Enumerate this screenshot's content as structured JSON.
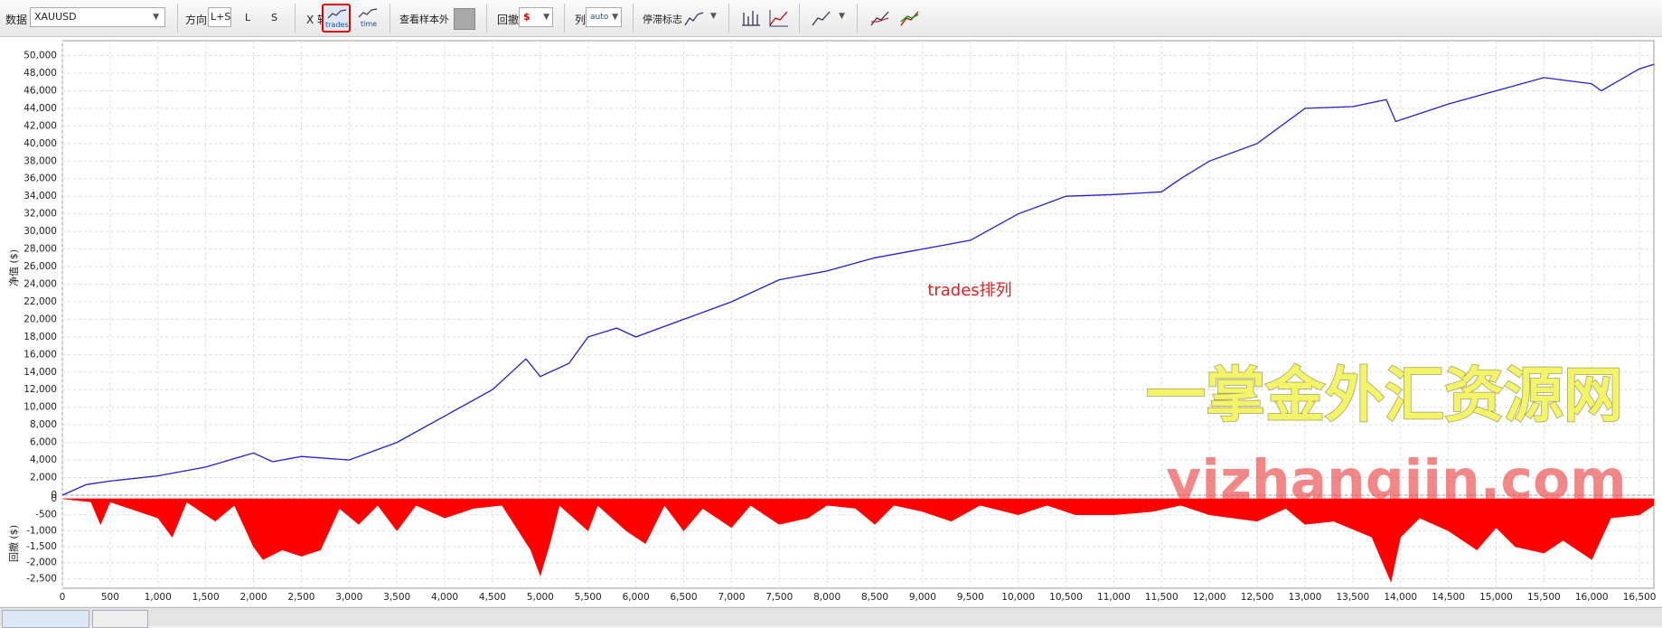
{
  "toolbar": {
    "data_label": "数据",
    "data_value": "XAUUSD",
    "direction_label": "方向",
    "direction_options": [
      "L+S",
      "L",
      "S"
    ],
    "x_axis_label": "X 轴",
    "x_axis_options": [
      "trades",
      "time"
    ],
    "out_of_sample": "查看样本外",
    "drawdown_label": "回撤",
    "drawdown_unit": "$",
    "columns_label": "列",
    "columns_value": "auto",
    "stagnation_label": "停滞标志"
  },
  "chart_data": [
    {
      "type": "line",
      "y_label": "净值 ($)",
      "annotation": "trades排列",
      "watermark_texts": [
        "一掌金外汇资源网",
        "yizhangjin.com"
      ],
      "color": "#2020d0",
      "grid": true,
      "xlim": [
        0,
        16650
      ],
      "ylim": [
        0,
        51700
      ],
      "yticks": [
        0,
        {
          "value": 2000,
          "label": "2,000"
        },
        {
          "value": 4000,
          "label": "4,000"
        },
        {
          "value": 6000,
          "label": "6,000"
        },
        {
          "value": 8000,
          "label": "8,000"
        },
        {
          "value": 10000,
          "label": "10,000"
        },
        {
          "value": 12000,
          "label": "12,000"
        },
        {
          "value": 14000,
          "label": "14,000"
        },
        {
          "value": 16000,
          "label": "16,000"
        },
        {
          "value": 18000,
          "label": "18,000"
        },
        {
          "value": 20000,
          "label": "20,000"
        },
        {
          "value": 22000,
          "label": "22,000"
        },
        {
          "value": 24000,
          "label": "24,000"
        },
        {
          "value": 26000,
          "label": "26,000"
        },
        {
          "value": 28000,
          "label": "28,000"
        },
        {
          "value": 30000,
          "label": "30,000"
        },
        {
          "value": 32000,
          "label": "32,000"
        },
        {
          "value": 34000,
          "label": "34,000"
        },
        {
          "value": 36000,
          "label": "36,000"
        },
        {
          "value": 38000,
          "label": "38,000"
        },
        {
          "value": 40000,
          "label": "40,000"
        },
        {
          "value": 42000,
          "label": "42,000"
        },
        {
          "value": 44000,
          "label": "44,000"
        },
        {
          "value": 46000,
          "label": "46,000"
        },
        {
          "value": 48000,
          "label": "48,000"
        },
        {
          "value": 50000,
          "label": "50,000"
        }
      ],
      "x": [
        0,
        250,
        500,
        1000,
        1500,
        2000,
        2200,
        2500,
        3000,
        3500,
        4000,
        4500,
        4850,
        5000,
        5300,
        5500,
        5800,
        6000,
        6500,
        7000,
        7500,
        8000,
        8500,
        9000,
        9500,
        10000,
        10500,
        11000,
        11500,
        11700,
        12000,
        12500,
        13000,
        13500,
        13850,
        13950,
        14500,
        15000,
        15500,
        16000,
        16100,
        16500,
        16650
      ],
      "values": [
        0,
        1200,
        1600,
        2200,
        3200,
        4800,
        3800,
        4400,
        4000,
        6000,
        9000,
        12000,
        15500,
        13500,
        15000,
        18000,
        19000,
        18000,
        20000,
        22000,
        24500,
        25500,
        27000,
        28000,
        29000,
        32000,
        34000,
        34200,
        34500,
        36000,
        38000,
        40000,
        44000,
        44200,
        45000,
        42500,
        44500,
        46000,
        47500,
        46800,
        46000,
        48500,
        49000
      ]
    },
    {
      "type": "area",
      "y_label": "回撤 ($)",
      "color": "#ff0000",
      "grid": true,
      "xlim": [
        0,
        16650
      ],
      "ylim": [
        -2800,
        0
      ],
      "yticks": [
        0,
        -500,
        {
          "value": -1000,
          "label": "-1,000"
        },
        {
          "value": -1500,
          "label": "-1,500"
        },
        {
          "value": -2000,
          "label": "-2,000"
        },
        {
          "value": -2500,
          "label": "-2,500"
        }
      ],
      "xticks": [
        0,
        500,
        {
          "value": 1000,
          "label": "1,000"
        },
        {
          "value": 1500,
          "label": "1,500"
        },
        {
          "value": 2000,
          "label": "2,000"
        },
        {
          "value": 2500,
          "label": "2,500"
        },
        {
          "value": 3000,
          "label": "3,000"
        },
        {
          "value": 3500,
          "label": "3,500"
        },
        {
          "value": 4000,
          "label": "4,000"
        },
        {
          "value": 4500,
          "label": "4,500"
        },
        {
          "value": 5000,
          "label": "5,000"
        },
        {
          "value": 5500,
          "label": "5,500"
        },
        {
          "value": 6000,
          "label": "6,000"
        },
        {
          "value": 6500,
          "label": "6,500"
        },
        {
          "value": 7000,
          "label": "7,000"
        },
        {
          "value": 7500,
          "label": "7,500"
        },
        {
          "value": 8000,
          "label": "8,000"
        },
        {
          "value": 8500,
          "label": "8,500"
        },
        {
          "value": 9000,
          "label": "9,000"
        },
        {
          "value": 9500,
          "label": "9,500"
        },
        {
          "value": 10000,
          "label": "10,000"
        },
        {
          "value": 10500,
          "label": "10,500"
        },
        {
          "value": 11000,
          "label": "11,000"
        },
        {
          "value": 11500,
          "label": "11,500"
        },
        {
          "value": 12000,
          "label": "12,000"
        },
        {
          "value": 12500,
          "label": "12,500"
        },
        {
          "value": 13000,
          "label": "13,000"
        },
        {
          "value": 13500,
          "label": "13,500"
        },
        {
          "value": 14000,
          "label": "14,000"
        },
        {
          "value": 14500,
          "label": "14,500"
        },
        {
          "value": 15000,
          "label": "15,000"
        },
        {
          "value": 15500,
          "label": "15,500"
        },
        {
          "value": 16000,
          "label": "16,000"
        },
        {
          "value": 16500,
          "label": "16,500"
        }
      ],
      "x": [
        0,
        300,
        400,
        500,
        1000,
        1150,
        1300,
        1600,
        1800,
        2000,
        2100,
        2300,
        2500,
        2700,
        2900,
        3100,
        3300,
        3500,
        3700,
        4000,
        4300,
        4600,
        4900,
        5000,
        5100,
        5200,
        5500,
        5600,
        5900,
        6100,
        6300,
        6500,
        6700,
        7000,
        7200,
        7500,
        7800,
        8000,
        8300,
        8500,
        8700,
        9000,
        9300,
        9600,
        10000,
        10300,
        10600,
        11000,
        11400,
        11700,
        12000,
        12500,
        12800,
        13000,
        13300,
        13700,
        13900,
        14000,
        14200,
        14500,
        14800,
        15000,
        15200,
        15500,
        15700,
        16000,
        16200,
        16500,
        16650
      ],
      "values": [
        0,
        -100,
        -800,
        -100,
        -600,
        -1200,
        -100,
        -700,
        -200,
        -1500,
        -1900,
        -1600,
        -1800,
        -1600,
        -300,
        -800,
        -200,
        -1000,
        -200,
        -600,
        -300,
        -200,
        -1600,
        -2400,
        -1400,
        -200,
        -1000,
        -200,
        -1000,
        -1400,
        -200,
        -1000,
        -300,
        -900,
        -200,
        -800,
        -600,
        -200,
        -300,
        -800,
        -200,
        -400,
        -700,
        -200,
        -500,
        -200,
        -500,
        -500,
        -400,
        -200,
        -500,
        -700,
        -300,
        -800,
        -700,
        -1200,
        -2600,
        -1200,
        -600,
        -1000,
        -1600,
        -900,
        -1500,
        -1700,
        -1300,
        -1900,
        -600,
        -500,
        -200
      ]
    }
  ]
}
